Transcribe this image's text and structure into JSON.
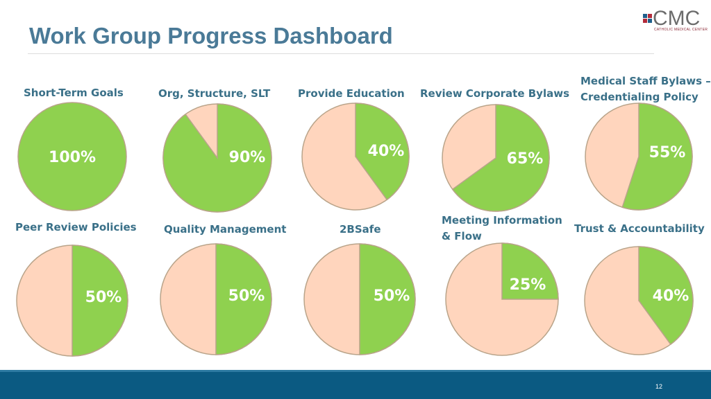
{
  "title": "Work Group Progress Dashboard",
  "logo": {
    "text": "CMC",
    "subtitle": "CATHOLIC MEDICAL CENTER"
  },
  "page_number": "12",
  "colors": {
    "complete": "#8fd14f",
    "remaining": "#ffd5bd",
    "outline": "#b9a48a",
    "title": "#4a7a97",
    "label": "#3a7088",
    "footer": "#0b5a82"
  },
  "chart_data": [
    {
      "type": "pie",
      "label": "Short-Term Goals",
      "value": 100,
      "value_label": "100%"
    },
    {
      "type": "pie",
      "label": "Org, Structure, SLT",
      "value": 90,
      "value_label": "90%"
    },
    {
      "type": "pie",
      "label": "Provide Education",
      "value": 40,
      "value_label": "40%"
    },
    {
      "type": "pie",
      "label": "Review Corporate Bylaws",
      "value": 65,
      "value_label": "65%"
    },
    {
      "type": "pie",
      "label": "Medical Staff Bylaws –\nCredentialing Policy",
      "value": 55,
      "value_label": "55%"
    },
    {
      "type": "pie",
      "label": "Peer Review Policies",
      "value": 50,
      "value_label": "50%"
    },
    {
      "type": "pie",
      "label": "Quality Management",
      "value": 50,
      "value_label": "50%"
    },
    {
      "type": "pie",
      "label": "2BSafe",
      "value": 50,
      "value_label": "50%"
    },
    {
      "type": "pie",
      "label": "Meeting Information\n& Flow",
      "value": 25,
      "value_label": "25%"
    },
    {
      "type": "pie",
      "label": "Trust & Accountability",
      "value": 40,
      "value_label": "40%"
    }
  ]
}
